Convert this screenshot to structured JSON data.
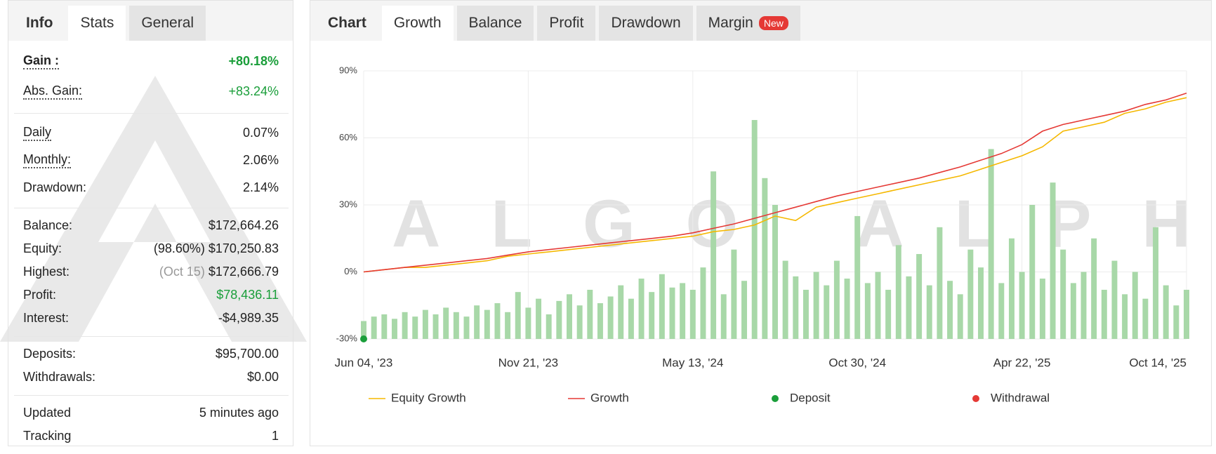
{
  "left_panel": {
    "tabs": [
      "Info",
      "Stats",
      "General"
    ],
    "active_tab": 1,
    "groups": [
      [
        {
          "label": "Gain :",
          "value": "+80.18%",
          "color": "#1a9e3a",
          "dotted": true,
          "bold": true
        },
        {
          "label": "Abs. Gain:",
          "value": "+83.24%",
          "color": "#1a9e3a",
          "dotted": true
        }
      ],
      [
        {
          "label": "Daily",
          "value": "0.07%",
          "dotted": true
        },
        {
          "label": "Monthly:",
          "value": "2.06%",
          "dotted": true
        },
        {
          "label": "Drawdown:",
          "value": "2.14%"
        }
      ],
      [
        {
          "label": "Balance:",
          "value": "$172,664.26"
        },
        {
          "label": "Equity:",
          "note": "(98.60%)",
          "value": "$170,250.83"
        },
        {
          "label": "Highest:",
          "note": "(Oct 15)",
          "note_color": "#999999",
          "value": "$172,666.79"
        },
        {
          "label": "Profit:",
          "value": "$78,436.11",
          "color": "#1a9e3a"
        },
        {
          "label": "Interest:",
          "value": "-$4,989.35"
        }
      ],
      [
        {
          "label": "Deposits:",
          "value": "$95,700.00"
        },
        {
          "label": "Withdrawals:",
          "value": "$0.00"
        }
      ],
      [
        {
          "label": "Updated",
          "value": "5 minutes ago"
        },
        {
          "label": "Tracking",
          "value": 1
        }
      ]
    ]
  },
  "right_panel": {
    "tabs": [
      "Chart",
      "Growth",
      "Balance",
      "Profit",
      "Drawdown",
      "Margin"
    ],
    "active_tab": 1,
    "badge": "New"
  },
  "watermark": "ALGO ALPHA",
  "chart_data": {
    "type": "line",
    "xlim": [
      0,
      40
    ],
    "xticks": [
      {
        "value": 0,
        "label": "Jun 04, '23"
      },
      {
        "value": 8,
        "label": "Nov 21, '23"
      },
      {
        "value": 16,
        "label": "May 13, '24"
      },
      {
        "value": 24,
        "label": "Oct 30, '24"
      },
      {
        "value": 32,
        "label": "Apr 22, '25"
      },
      {
        "value": 40,
        "label": "Oct 14, '25"
      }
    ],
    "ylim": [
      -30,
      90
    ],
    "yticks": [
      {
        "value": -30,
        "label": "-30%"
      },
      {
        "value": 0,
        "label": "0%"
      },
      {
        "value": 30,
        "label": "30%"
      },
      {
        "value": 60,
        "label": "60%"
      },
      {
        "value": 90,
        "label": "90%"
      }
    ],
    "grid": true,
    "series": [
      {
        "name": "Equity Growth",
        "color": "#f5b800",
        "values": [
          0,
          1,
          2,
          2,
          3,
          4,
          5,
          7,
          8,
          9,
          10,
          11,
          12,
          13,
          14,
          15,
          16,
          18,
          19,
          21,
          25,
          23,
          29,
          31,
          33,
          35,
          37,
          39,
          41,
          43,
          46,
          49,
          52,
          56,
          63,
          65,
          67,
          71,
          73,
          76,
          78
        ]
      },
      {
        "name": "Growth",
        "color": "#e53935",
        "values": [
          0,
          1,
          2,
          3,
          4,
          5,
          6,
          7.5,
          9,
          10,
          11,
          12,
          13,
          14,
          15,
          16,
          17.5,
          19.5,
          21.5,
          24,
          26.5,
          29,
          31.5,
          34,
          36,
          38,
          40,
          42,
          44.5,
          47,
          50,
          53,
          57,
          63,
          66,
          68,
          70,
          72,
          75,
          77,
          80
        ]
      }
    ],
    "bars": {
      "color": "#a8d8a8",
      "values": [
        -22,
        -20,
        -19,
        -21,
        -18,
        -20,
        -17,
        -19,
        -16,
        -18,
        -20,
        -15,
        -17,
        -14,
        -18,
        -9,
        -16,
        -12,
        -19,
        -13,
        -10,
        -15,
        -8,
        -14,
        -11,
        -6,
        -12,
        -3,
        -9,
        -1,
        -7,
        -5,
        -8,
        2,
        45,
        -10,
        10,
        -4,
        68,
        42,
        30,
        5,
        -2,
        -8,
        0,
        -6,
        5,
        -3,
        25,
        -5,
        0,
        -8,
        12,
        -2,
        8,
        -6,
        20,
        -4,
        -10,
        10,
        2,
        55,
        -5,
        15,
        0,
        30,
        -3,
        40,
        10,
        -5,
        0,
        15,
        -8,
        5,
        -10,
        0,
        -12,
        20,
        -6,
        -15,
        -8
      ]
    },
    "markers": [
      {
        "name": "Deposit",
        "color": "#1a9e3a",
        "points": [
          {
            "x": 0,
            "y": -30
          }
        ]
      },
      {
        "name": "Withdrawal",
        "color": "#e53935",
        "points": []
      }
    ]
  }
}
